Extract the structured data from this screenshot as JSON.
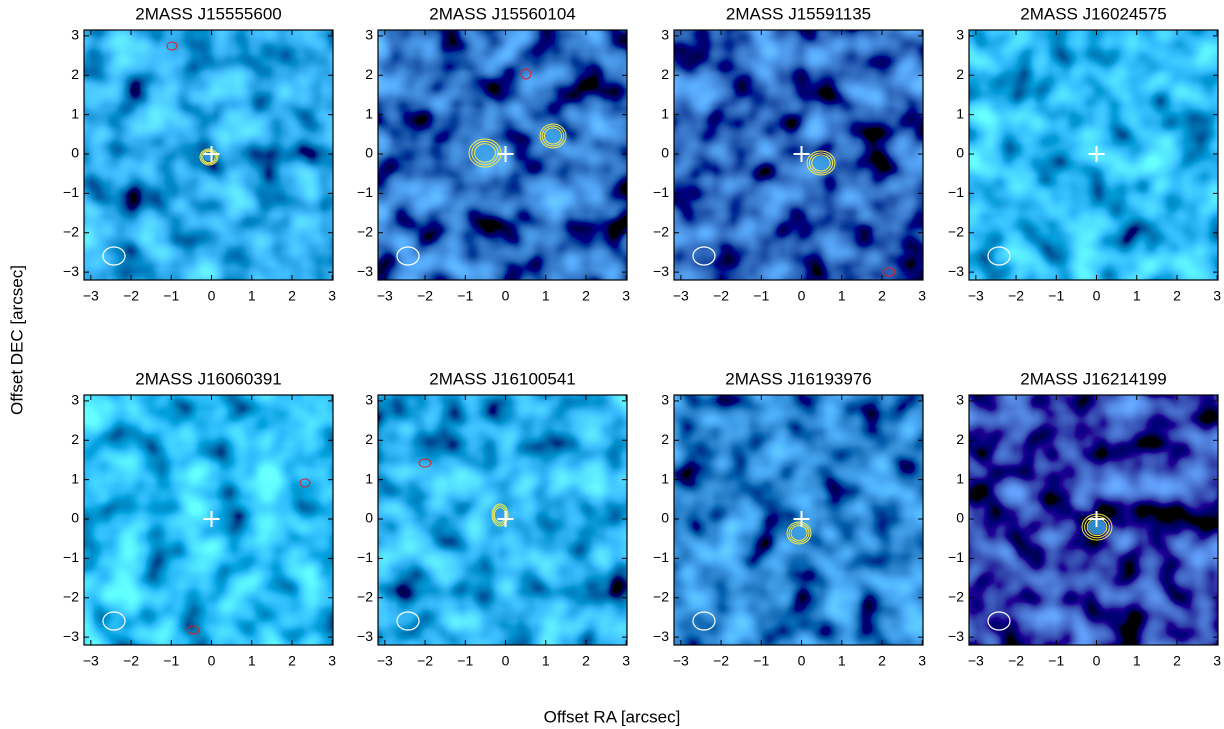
{
  "figure": {
    "xlabel": "Offset RA [arcsec]",
    "ylabel": "Offset DEC [arcsec]"
  },
  "chart_data": [
    {
      "type": "image",
      "title": "2MASS J15555600",
      "xlim": [
        -3.17,
        3.02
      ],
      "ylim": [
        -3.2,
        3.15
      ],
      "xticks": [
        {
          "value": -3,
          "label": "−3"
        },
        {
          "value": -2,
          "label": "−2"
        },
        {
          "value": -1,
          "label": "−1"
        },
        0,
        1,
        2,
        3
      ],
      "yticks": [
        {
          "value": -3,
          "label": "−3"
        },
        {
          "value": -2,
          "label": "−2"
        },
        {
          "value": -1,
          "label": "−1"
        },
        0,
        1,
        2,
        3
      ]
    },
    {
      "type": "image",
      "title": "2MASS J15560104",
      "xlim": [
        -3.17,
        3.02
      ],
      "ylim": [
        -3.2,
        3.15
      ],
      "xticks": [
        {
          "value": -3,
          "label": "−3"
        },
        {
          "value": -2,
          "label": "−2"
        },
        {
          "value": -1,
          "label": "−1"
        },
        0,
        1,
        2,
        3
      ],
      "yticks": [
        {
          "value": -3,
          "label": "−3"
        },
        {
          "value": -2,
          "label": "−2"
        },
        {
          "value": -1,
          "label": "−1"
        },
        0,
        1,
        2,
        3
      ]
    },
    {
      "type": "image",
      "title": "2MASS J15591135",
      "xlim": [
        -3.17,
        3.02
      ],
      "ylim": [
        -3.2,
        3.15
      ],
      "xticks": [
        {
          "value": -3,
          "label": "−3"
        },
        {
          "value": -2,
          "label": "−2"
        },
        {
          "value": -1,
          "label": "−1"
        },
        0,
        1,
        2,
        3
      ],
      "yticks": [
        {
          "value": -3,
          "label": "−3"
        },
        {
          "value": -2,
          "label": "−2"
        },
        {
          "value": -1,
          "label": "−1"
        },
        0,
        1,
        2,
        3
      ]
    },
    {
      "type": "image",
      "title": "2MASS J16024575",
      "xlim": [
        -3.17,
        3.02
      ],
      "ylim": [
        -3.2,
        3.15
      ],
      "xticks": [
        {
          "value": -3,
          "label": "−3"
        },
        {
          "value": -2,
          "label": "−2"
        },
        {
          "value": -1,
          "label": "−1"
        },
        0,
        1,
        2,
        3
      ],
      "yticks": [
        {
          "value": -3,
          "label": "−3"
        },
        {
          "value": -2,
          "label": "−2"
        },
        {
          "value": -1,
          "label": "−1"
        },
        0,
        1,
        2,
        3
      ]
    },
    {
      "type": "image",
      "title": "2MASS J16060391",
      "xlim": [
        -3.17,
        3.02
      ],
      "ylim": [
        -3.2,
        3.15
      ],
      "xticks": [
        {
          "value": -3,
          "label": "−3"
        },
        {
          "value": -2,
          "label": "−2"
        },
        {
          "value": -1,
          "label": "−1"
        },
        0,
        1,
        2,
        3
      ],
      "yticks": [
        {
          "value": -3,
          "label": "−3"
        },
        {
          "value": -2,
          "label": "−2"
        },
        {
          "value": -1,
          "label": "−1"
        },
        0,
        1,
        2,
        3
      ]
    },
    {
      "type": "image",
      "title": "2MASS J16100541",
      "xlim": [
        -3.17,
        3.02
      ],
      "ylim": [
        -3.2,
        3.15
      ],
      "xticks": [
        {
          "value": -3,
          "label": "−3"
        },
        {
          "value": -2,
          "label": "−2"
        },
        {
          "value": -1,
          "label": "−1"
        },
        0,
        1,
        2,
        3
      ],
      "yticks": [
        {
          "value": -3,
          "label": "−3"
        },
        {
          "value": -2,
          "label": "−2"
        },
        {
          "value": -1,
          "label": "−1"
        },
        0,
        1,
        2,
        3
      ]
    },
    {
      "type": "image",
      "title": "2MASS J16193976",
      "xlim": [
        -3.17,
        3.02
      ],
      "ylim": [
        -3.2,
        3.15
      ],
      "xticks": [
        {
          "value": -3,
          "label": "−3"
        },
        {
          "value": -2,
          "label": "−2"
        },
        {
          "value": -1,
          "label": "−1"
        },
        0,
        1,
        2,
        3
      ],
      "yticks": [
        {
          "value": -3,
          "label": "−3"
        },
        {
          "value": -2,
          "label": "−2"
        },
        {
          "value": -1,
          "label": "−1"
        },
        0,
        1,
        2,
        3
      ]
    },
    {
      "type": "image",
      "title": "2MASS J16214199",
      "xlim": [
        -3.17,
        3.02
      ],
      "ylim": [
        -3.2,
        3.15
      ],
      "xticks": [
        {
          "value": -3,
          "label": "−3"
        },
        {
          "value": -2,
          "label": "−2"
        },
        {
          "value": -1,
          "label": "−1"
        },
        0,
        1,
        2,
        3
      ],
      "yticks": [
        {
          "value": -3,
          "label": "−3"
        },
        {
          "value": -2,
          "label": "−2"
        },
        {
          "value": -1,
          "label": "−1"
        },
        0,
        1,
        2,
        3
      ]
    }
  ]
}
